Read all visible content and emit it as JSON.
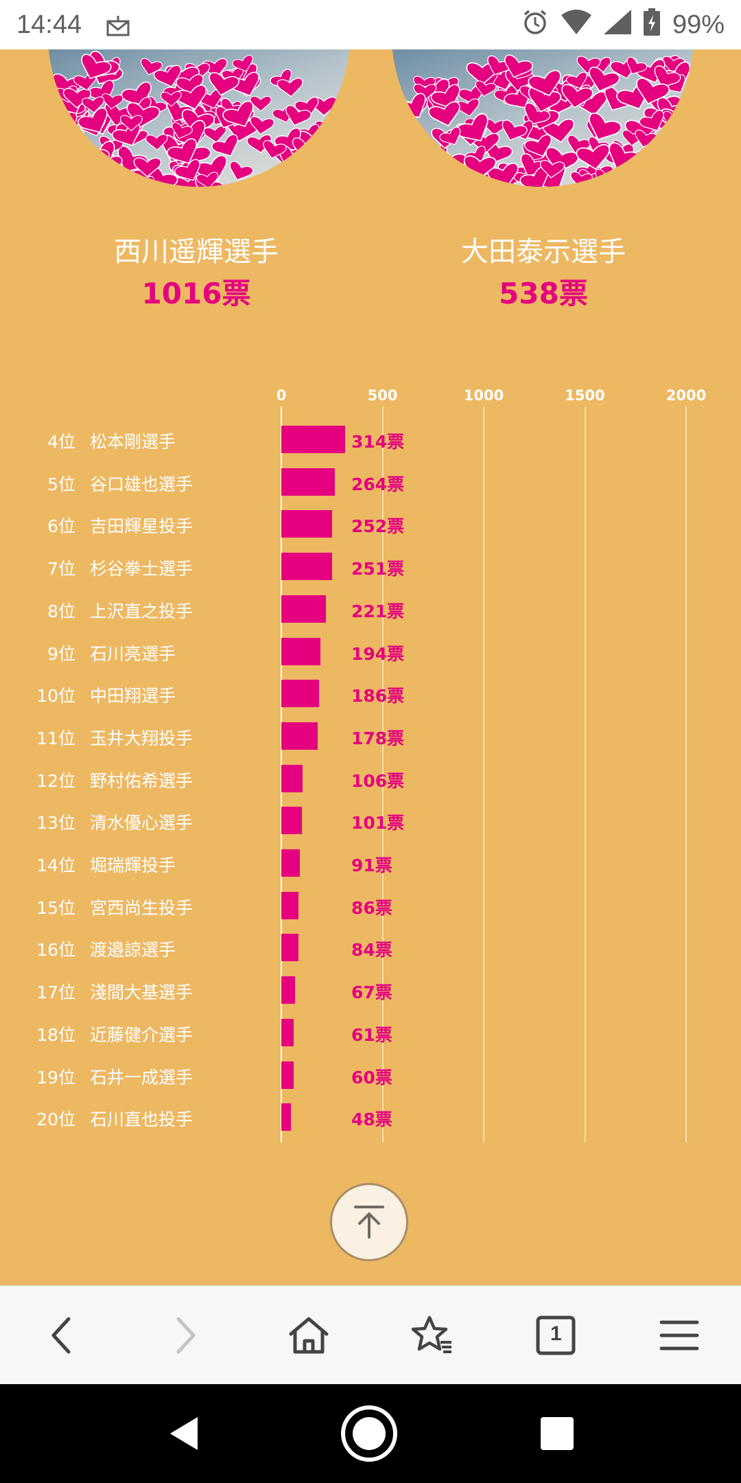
{
  "status_bar": {
    "time": "14:44",
    "battery": "99%",
    "icons": [
      "mail-icon",
      "alarm-icon",
      "wifi-icon",
      "signal-icon",
      "battery-charging-icon"
    ]
  },
  "top_players": [
    {
      "name": "西川遥輝選手",
      "votes": "1016票"
    },
    {
      "name": "大田泰示選手",
      "votes": "538票"
    }
  ],
  "colors": {
    "background": "#EDB862",
    "accent": "#E4007F"
  },
  "chart_data": {
    "type": "bar",
    "orientation": "horizontal",
    "x_ticks": [
      "0",
      "500",
      "1000",
      "1500",
      "2000"
    ],
    "xlim": [
      0,
      2000
    ],
    "grid": true,
    "rows": [
      {
        "rank": "4位",
        "name": "松本剛選手",
        "value": 314,
        "label": "314票"
      },
      {
        "rank": "5位",
        "name": "谷口雄也選手",
        "value": 264,
        "label": "264票"
      },
      {
        "rank": "6位",
        "name": "吉田輝星投手",
        "value": 252,
        "label": "252票"
      },
      {
        "rank": "7位",
        "name": "杉谷拳士選手",
        "value": 251,
        "label": "251票"
      },
      {
        "rank": "8位",
        "name": "上沢直之投手",
        "value": 221,
        "label": "221票"
      },
      {
        "rank": "9位",
        "name": "石川亮選手",
        "value": 194,
        "label": "194票"
      },
      {
        "rank": "10位",
        "name": "中田翔選手",
        "value": 186,
        "label": "186票"
      },
      {
        "rank": "11位",
        "name": "玉井大翔投手",
        "value": 178,
        "label": "178票"
      },
      {
        "rank": "12位",
        "name": "野村佑希選手",
        "value": 106,
        "label": "106票"
      },
      {
        "rank": "13位",
        "name": "清水優心選手",
        "value": 101,
        "label": "101票"
      },
      {
        "rank": "14位",
        "name": "堀瑞輝投手",
        "value": 91,
        "label": "91票"
      },
      {
        "rank": "15位",
        "name": "宮西尚生投手",
        "value": 86,
        "label": "86票"
      },
      {
        "rank": "16位",
        "name": "渡邉諒選手",
        "value": 84,
        "label": "84票"
      },
      {
        "rank": "17位",
        "name": "淺間大基選手",
        "value": 67,
        "label": "67票"
      },
      {
        "rank": "18位",
        "name": "近藤健介選手",
        "value": 61,
        "label": "61票"
      },
      {
        "rank": "19位",
        "name": "石井一成選手",
        "value": 60,
        "label": "60票"
      },
      {
        "rank": "20位",
        "name": "石川直也投手",
        "value": 48,
        "label": "48票"
      }
    ]
  },
  "back_to_top": {
    "icon": "arrow-up-to-top-icon"
  },
  "toolbar": {
    "tab_count": "1",
    "icons": [
      "back-icon",
      "forward-icon",
      "home-icon",
      "bookmarks-star-icon",
      "tabs-icon",
      "menu-icon"
    ]
  },
  "nav_bar": {
    "icons": [
      "nav-back-icon",
      "nav-home-icon",
      "nav-recents-icon"
    ]
  }
}
